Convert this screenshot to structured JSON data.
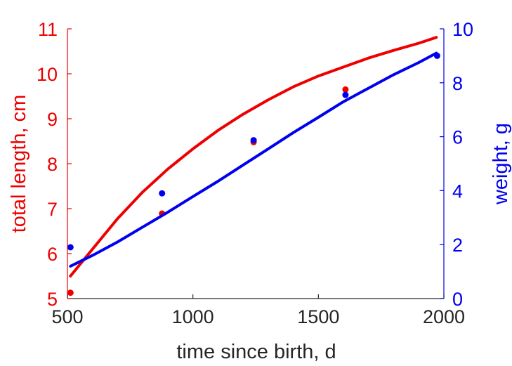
{
  "chart_data": {
    "type": "line",
    "title": "",
    "xlabel": "time since birth, d",
    "ylabel_left": "total length, cm",
    "ylabel_right": "weight, g",
    "xlim": [
      500,
      2000
    ],
    "ylim_left": [
      5,
      11
    ],
    "ylim_right": [
      0,
      10
    ],
    "x_ticks": [
      500,
      1000,
      1500,
      2000
    ],
    "y_ticks_left": [
      5,
      6,
      7,
      8,
      9,
      10,
      11
    ],
    "y_ticks_right": [
      0,
      2,
      4,
      6,
      8,
      10
    ],
    "grid": false,
    "legend": "none",
    "colors": {
      "left": "#ee0000",
      "right": "#0000ee",
      "x_axis": "#262626"
    },
    "series": [
      {
        "axis": "left",
        "color": "#ee0000",
        "points": {
          "x": [
            512,
            877,
            1242,
            1608
          ],
          "y": [
            5.13,
            6.89,
            8.48,
            9.65
          ]
        },
        "fit": {
          "x": [
            512,
            600,
            700,
            800,
            900,
            1000,
            1100,
            1200,
            1300,
            1400,
            1500,
            1600,
            1700,
            1800,
            1900,
            1970
          ],
          "y": [
            5.5,
            6.1,
            6.78,
            7.37,
            7.88,
            8.33,
            8.74,
            9.1,
            9.42,
            9.71,
            9.95,
            10.15,
            10.35,
            10.52,
            10.68,
            10.81
          ]
        }
      },
      {
        "axis": "right",
        "color": "#0000ee",
        "points": {
          "x": [
            512,
            877,
            1242,
            1608,
            1973
          ],
          "y": [
            1.9,
            3.9,
            5.87,
            7.55,
            9.0
          ]
        },
        "fit": {
          "x": [
            512,
            600,
            700,
            800,
            900,
            1000,
            1100,
            1200,
            1300,
            1400,
            1500,
            1600,
            1700,
            1800,
            1900,
            1970
          ],
          "y": [
            1.2,
            1.6,
            2.1,
            2.65,
            3.2,
            3.78,
            4.35,
            4.95,
            5.55,
            6.15,
            6.72,
            7.3,
            7.8,
            8.3,
            8.75,
            9.1
          ]
        }
      }
    ]
  }
}
